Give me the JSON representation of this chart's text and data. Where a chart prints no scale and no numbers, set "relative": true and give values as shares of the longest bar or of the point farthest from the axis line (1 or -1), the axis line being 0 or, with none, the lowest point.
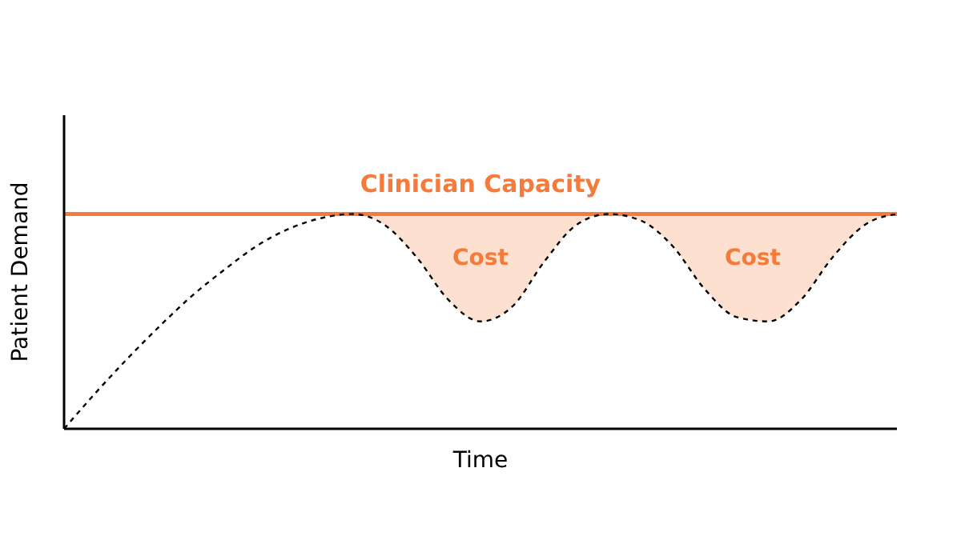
{
  "chart_data": {
    "type": "line",
    "relative": true,
    "xlabel": "Time",
    "ylabel": "Patient Demand",
    "categories": [
      null,
      null,
      null,
      null,
      null,
      null,
      null,
      null,
      null,
      null,
      null,
      null,
      null,
      null,
      null,
      null,
      null,
      null,
      null,
      null,
      null,
      null,
      null,
      null,
      null,
      null,
      null
    ],
    "series": [
      {
        "color": "#000000",
        "line_style": "dashed",
        "marker": "none",
        "values": [
          0,
          0.17,
          0.33,
          0.48,
          0.62,
          0.74,
          0.85,
          0.93,
          0.98,
          1.0,
          0.95,
          0.8,
          0.6,
          0.5,
          0.57,
          0.78,
          0.95,
          1.0,
          0.97,
          0.85,
          0.65,
          0.52,
          0.5,
          0.6,
          0.8,
          0.95,
          1.0
        ],
        "lower": [
          null,
          null,
          null,
          null,
          null,
          null,
          null,
          null,
          null,
          1.0,
          0.95,
          0.8,
          0.6,
          0.5,
          0.57,
          0.78,
          0.95,
          1.0,
          0.97,
          0.85,
          0.65,
          0.52,
          0.5,
          0.6,
          0.8,
          0.95,
          1.0
        ],
        "upper": [
          null,
          null,
          null,
          null,
          null,
          null,
          null,
          null,
          null,
          1.0,
          1.0,
          1.0,
          1.0,
          1.0,
          1.0,
          1.0,
          1.0,
          1.0,
          1.0,
          1.0,
          1.0,
          1.0,
          1.0,
          1.0,
          1.0,
          1.0,
          1.0
        ]
      }
    ],
    "ref_lines": [
      {
        "axis": "y",
        "value": 1.0,
        "label": "Clinician Capacity",
        "color": "#f47b3b"
      }
    ],
    "annotations": [
      "Cost",
      "Cost"
    ],
    "legend": false,
    "grid": false
  }
}
